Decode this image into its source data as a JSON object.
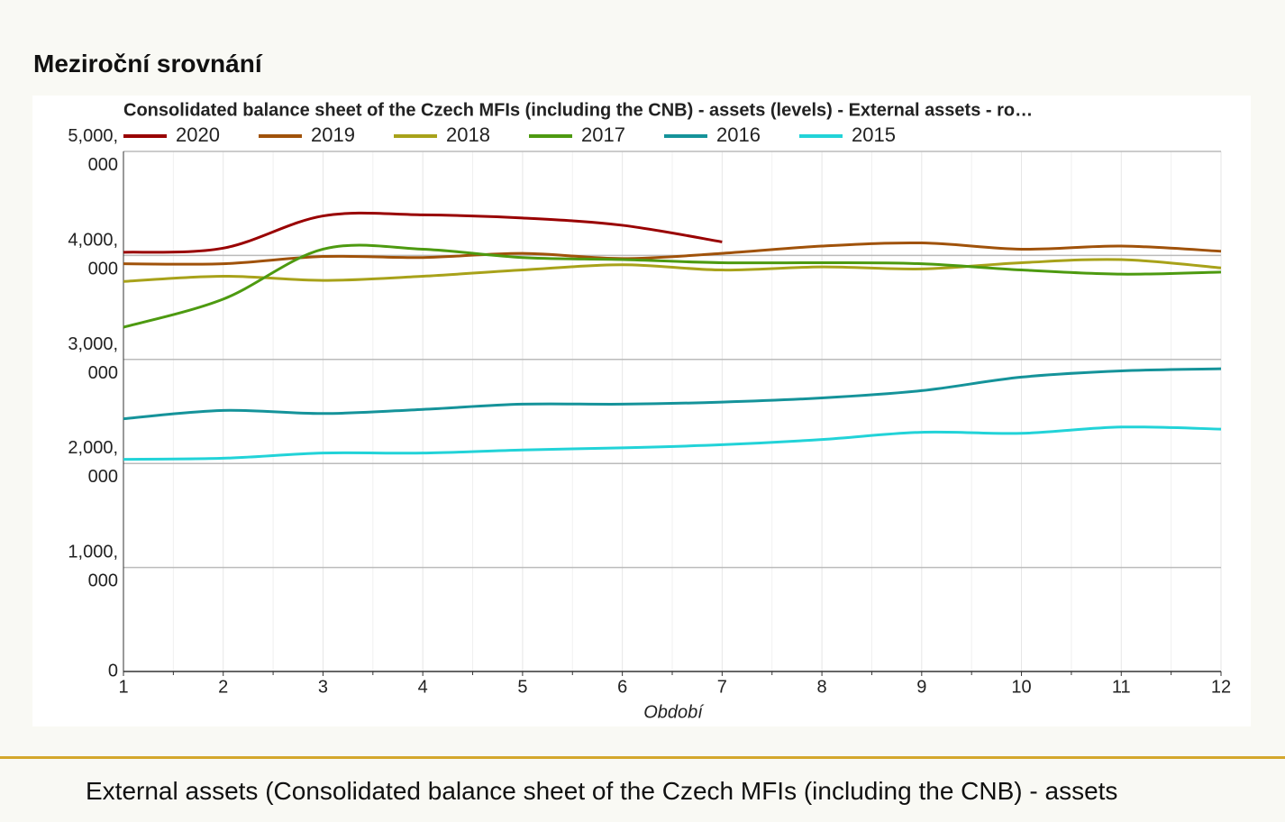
{
  "page": {
    "heading": "Meziroční srovnání",
    "caption": "External assets (Consolidated balance sheet of the Czech MFIs (including the CNB) - assets"
  },
  "chart_data": {
    "type": "line",
    "title": "Consolidated balance sheet of the Czech MFIs (including the CNB) - assets (levels) - External assets - ro…",
    "x_label": "Období",
    "x": [
      1,
      2,
      3,
      4,
      5,
      6,
      7,
      8,
      9,
      10,
      11,
      12
    ],
    "xlim": [
      1,
      12
    ],
    "xticks": [
      1,
      2,
      3,
      4,
      5,
      6,
      7,
      8,
      9,
      10,
      11,
      12
    ],
    "ylim": [
      0,
      5000000
    ],
    "yticks": [
      0,
      {
        "value": 1000000,
        "label": "1,000,000"
      },
      {
        "value": 2000000,
        "label": "2,000,000"
      },
      {
        "value": 3000000,
        "label": "3,000,000"
      },
      {
        "value": 4000000,
        "label": "4,000,000"
      },
      {
        "value": 5000000,
        "label": "5,000,000"
      }
    ],
    "grid": true,
    "legend": "top",
    "series": [
      {
        "name": "2020",
        "color": "#990000",
        "values": [
          4030000,
          4070000,
          4380000,
          4390000,
          4360000,
          4290000,
          4130000,
          null,
          null,
          null,
          null,
          null
        ]
      },
      {
        "name": "2019",
        "color": "#a0520a",
        "values": [
          3920000,
          3920000,
          3990000,
          3980000,
          4020000,
          3970000,
          4020000,
          4090000,
          4120000,
          4060000,
          4090000,
          4040000
        ]
      },
      {
        "name": "2018",
        "color": "#a8a21a",
        "values": [
          3750000,
          3800000,
          3760000,
          3800000,
          3860000,
          3910000,
          3860000,
          3890000,
          3870000,
          3930000,
          3960000,
          3880000
        ]
      },
      {
        "name": "2017",
        "color": "#4d9a10",
        "values": [
          3310000,
          3580000,
          4060000,
          4060000,
          3980000,
          3960000,
          3930000,
          3930000,
          3920000,
          3860000,
          3820000,
          3840000
        ]
      },
      {
        "name": "2016",
        "color": "#15939a",
        "values": [
          2430000,
          2510000,
          2480000,
          2520000,
          2570000,
          2570000,
          2590000,
          2630000,
          2700000,
          2830000,
          2890000,
          2910000
        ]
      },
      {
        "name": "2015",
        "color": "#22d3d8",
        "values": [
          2040000,
          2050000,
          2100000,
          2100000,
          2130000,
          2150000,
          2180000,
          2230000,
          2300000,
          2290000,
          2350000,
          2330000
        ]
      }
    ]
  }
}
